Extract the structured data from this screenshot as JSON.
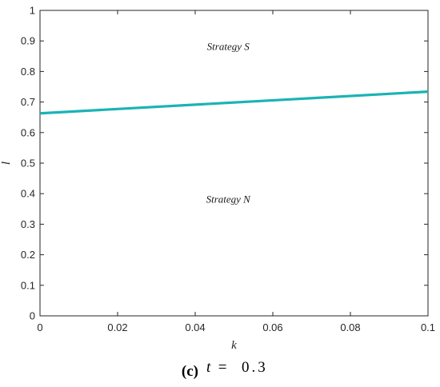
{
  "chart_data": {
    "type": "line",
    "xlabel": "k",
    "ylabel": "l",
    "xlim": [
      0,
      0.1
    ],
    "ylim": [
      0,
      1
    ],
    "x_ticks": [
      "0",
      "0.02",
      "0.04",
      "0.06",
      "0.08",
      "0.1"
    ],
    "y_ticks": [
      "0",
      "0.1",
      "0.2",
      "0.3",
      "0.4",
      "0.5",
      "0.6",
      "0.7",
      "0.8",
      "0.9",
      "1"
    ],
    "grid": false,
    "series": [
      {
        "x": [
          0,
          0.1
        ],
        "y": [
          0.663,
          0.734
        ],
        "color": "#1bb3b3"
      }
    ],
    "annotations": [
      {
        "text": "Strategy S",
        "x": 0.0485,
        "y": 0.87
      },
      {
        "text": "Strategy N",
        "x": 0.0485,
        "y": 0.37
      }
    ]
  },
  "caption": {
    "label": "(c)",
    "var": "t",
    "equals": " = ",
    "value": "0.3"
  }
}
